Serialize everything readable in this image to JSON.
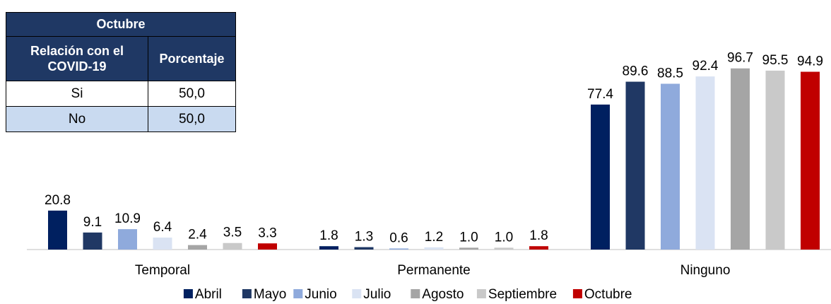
{
  "table": {
    "title": "Octubre",
    "col1_header": "Relación con el COVID-19",
    "col2_header": "Porcentaje",
    "rows": [
      {
        "label": "Si",
        "value": "50,0"
      },
      {
        "label": "No",
        "value": "50,0"
      }
    ]
  },
  "chart_data": {
    "type": "bar",
    "categories": [
      "Temporal",
      "Permanente",
      "Ninguno"
    ],
    "series": [
      {
        "name": "Abril",
        "color": "#002060",
        "values": [
          20.8,
          1.8,
          77.4
        ]
      },
      {
        "name": "Mayo",
        "color": "#203864",
        "values": [
          9.1,
          1.3,
          89.6
        ]
      },
      {
        "name": "Junio",
        "color": "#8faadc",
        "values": [
          10.9,
          0.6,
          88.5
        ]
      },
      {
        "name": "Julio",
        "color": "#dae3f3",
        "values": [
          6.4,
          1.2,
          92.4
        ]
      },
      {
        "name": "Agosto",
        "color": "#a5a5a5",
        "values": [
          2.4,
          1.0,
          96.7
        ]
      },
      {
        "name": "Septiembre",
        "color": "#c9c9c9",
        "values": [
          3.5,
          1.0,
          95.5
        ]
      },
      {
        "name": "Octubre",
        "color": "#c00000",
        "values": [
          3.3,
          1.8,
          94.9
        ]
      }
    ],
    "legend_position": "bottom",
    "data_labels": true,
    "grid": false
  }
}
